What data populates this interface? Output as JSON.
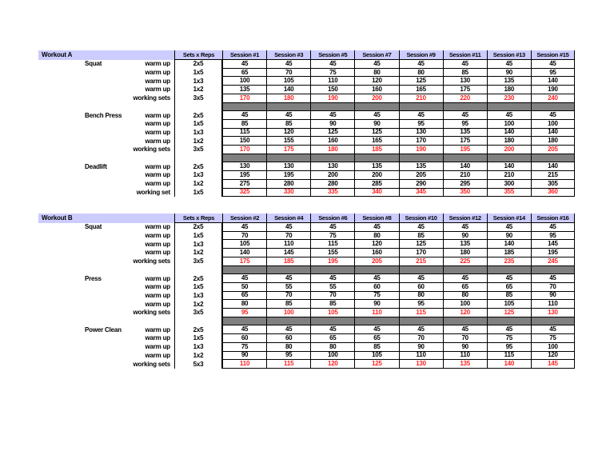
{
  "colors": {
    "header_bg": "#ccccff",
    "separator_bg": "#808080",
    "working_set_text": "#ff2222",
    "grid_border": "#000000",
    "page_bg": "#ffffff"
  },
  "workouts": [
    {
      "title": "Workout A",
      "sets_reps_header": "Sets x Reps",
      "sessions": [
        "Session #1",
        "Session #3",
        "Session #5",
        "Session #7",
        "Session #9",
        "Session #11",
        "Session #13",
        "Session #15"
      ],
      "exercises": [
        {
          "name": "Squat",
          "rows": [
            {
              "label": "warm up",
              "sets": "2x5",
              "working": false,
              "values": [
                45,
                45,
                45,
                45,
                45,
                45,
                45,
                45
              ]
            },
            {
              "label": "warm up",
              "sets": "1x5",
              "working": false,
              "values": [
                65,
                70,
                75,
                80,
                80,
                85,
                90,
                95
              ]
            },
            {
              "label": "warm up",
              "sets": "1x3",
              "working": false,
              "values": [
                100,
                105,
                110,
                120,
                125,
                130,
                135,
                140
              ]
            },
            {
              "label": "warm up",
              "sets": "1x2",
              "working": false,
              "values": [
                135,
                140,
                150,
                160,
                165,
                175,
                180,
                190
              ]
            },
            {
              "label": "working sets",
              "sets": "3x5",
              "working": true,
              "values": [
                170,
                180,
                190,
                200,
                210,
                220,
                230,
                240
              ]
            }
          ]
        },
        {
          "name": "Bench Press",
          "rows": [
            {
              "label": "warm up",
              "sets": "2x5",
              "working": false,
              "values": [
                45,
                45,
                45,
                45,
                45,
                45,
                45,
                45
              ]
            },
            {
              "label": "warm up",
              "sets": "1x5",
              "working": false,
              "values": [
                85,
                85,
                90,
                90,
                95,
                95,
                100,
                100
              ]
            },
            {
              "label": "warm up",
              "sets": "1x3",
              "working": false,
              "values": [
                115,
                120,
                125,
                125,
                130,
                135,
                140,
                140
              ]
            },
            {
              "label": "warm up",
              "sets": "1x2",
              "working": false,
              "values": [
                150,
                155,
                160,
                165,
                170,
                175,
                180,
                180
              ]
            },
            {
              "label": "working sets",
              "sets": "3x5",
              "working": true,
              "values": [
                170,
                175,
                180,
                185,
                190,
                195,
                200,
                205
              ]
            }
          ]
        },
        {
          "name": "Deadlift",
          "rows": [
            {
              "label": "warm up",
              "sets": "2x5",
              "working": false,
              "values": [
                130,
                130,
                130,
                135,
                135,
                140,
                140,
                140
              ]
            },
            {
              "label": "warm up",
              "sets": "1x3",
              "working": false,
              "values": [
                195,
                195,
                200,
                200,
                205,
                210,
                210,
                215
              ]
            },
            {
              "label": "warm up",
              "sets": "1x2",
              "working": false,
              "values": [
                275,
                280,
                280,
                285,
                290,
                295,
                300,
                305
              ]
            },
            {
              "label": "working set",
              "sets": "1x5",
              "working": true,
              "values": [
                325,
                330,
                335,
                340,
                345,
                350,
                355,
                360
              ]
            }
          ]
        }
      ]
    },
    {
      "title": "Workout B",
      "sets_reps_header": "Sets x Reps",
      "sessions": [
        "Session #2",
        "Session #4",
        "Session #6",
        "Session #8",
        "Session #10",
        "Session #12",
        "Session #14",
        "Session #16"
      ],
      "exercises": [
        {
          "name": "Squat",
          "rows": [
            {
              "label": "warm up",
              "sets": "2x5",
              "working": false,
              "values": [
                45,
                45,
                45,
                45,
                45,
                45,
                45,
                45
              ]
            },
            {
              "label": "warm up",
              "sets": "1x5",
              "working": false,
              "values": [
                70,
                70,
                75,
                80,
                85,
                90,
                90,
                95
              ]
            },
            {
              "label": "warm up",
              "sets": "1x3",
              "working": false,
              "values": [
                105,
                110,
                115,
                120,
                125,
                135,
                140,
                145
              ]
            },
            {
              "label": "warm up",
              "sets": "1x2",
              "working": false,
              "values": [
                140,
                145,
                155,
                160,
                170,
                180,
                185,
                195
              ]
            },
            {
              "label": "working sets",
              "sets": "3x5",
              "working": true,
              "values": [
                175,
                185,
                195,
                205,
                215,
                225,
                235,
                245
              ]
            }
          ]
        },
        {
          "name": "Press",
          "rows": [
            {
              "label": "warm up",
              "sets": "2x5",
              "working": false,
              "values": [
                45,
                45,
                45,
                45,
                45,
                45,
                45,
                45
              ]
            },
            {
              "label": "warm up",
              "sets": "1x5",
              "working": false,
              "values": [
                50,
                55,
                55,
                60,
                60,
                65,
                65,
                70
              ]
            },
            {
              "label": "warm up",
              "sets": "1x3",
              "working": false,
              "values": [
                65,
                70,
                70,
                75,
                80,
                80,
                85,
                90
              ]
            },
            {
              "label": "warm up",
              "sets": "1x2",
              "working": false,
              "values": [
                80,
                85,
                85,
                90,
                95,
                100,
                105,
                110
              ]
            },
            {
              "label": "working sets",
              "sets": "3x5",
              "working": true,
              "values": [
                95,
                100,
                105,
                110,
                115,
                120,
                125,
                130
              ]
            }
          ]
        },
        {
          "name": "Power Clean",
          "rows": [
            {
              "label": "warm up",
              "sets": "2x5",
              "working": false,
              "values": [
                45,
                45,
                45,
                45,
                45,
                45,
                45,
                45
              ]
            },
            {
              "label": "warm up",
              "sets": "1x5",
              "working": false,
              "values": [
                60,
                60,
                65,
                65,
                70,
                70,
                75,
                75
              ]
            },
            {
              "label": "warm up",
              "sets": "1x3",
              "working": false,
              "values": [
                75,
                80,
                80,
                85,
                90,
                90,
                95,
                100
              ]
            },
            {
              "label": "warm up",
              "sets": "1x2",
              "working": false,
              "values": [
                90,
                95,
                100,
                105,
                110,
                110,
                115,
                120
              ]
            },
            {
              "label": "working sets",
              "sets": "5x3",
              "working": true,
              "values": [
                110,
                115,
                120,
                125,
                130,
                135,
                140,
                145
              ]
            }
          ]
        }
      ]
    }
  ]
}
